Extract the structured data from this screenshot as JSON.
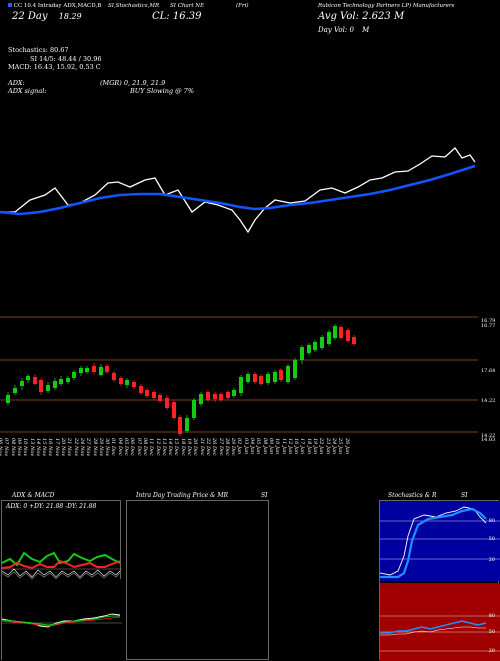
{
  "header": {
    "left_line": "CC 10.4 Intraday ADX,MACD,B",
    "line2": "SI,Stochastics,MR",
    "line3": "SI Chart NE",
    "line4": "(Fri)",
    "company": "Rubicon Technology Partners LP) Manufacturers",
    "day": "22 Day",
    "day_val": "18.29",
    "close_label": "CL:",
    "close_val": "16.39",
    "avg_vol_label": "Avg Vol:",
    "avg_vol_val": "2.623",
    "avg_vol_unit": "M",
    "day_vol_label": "Day Vol:",
    "day_vol_val": "0",
    "day_vol_unit": "M"
  },
  "indicators": {
    "stoch": "Stochastics: 80.67",
    "si": "SI 14/5: 48.44 / 30.96",
    "macd": "MACD: 16.43, 15.92, 0.53 C",
    "adx": "ADX:",
    "adx_val": "(MGR) 0, 21.9, 21.9",
    "adx_signal": "ADX signal:",
    "buy": "BUY Slowing @ 7%"
  },
  "price_axis": [
    "16.79",
    "16.77",
    "17.64",
    "14.22",
    "14.22",
    "14.03"
  ],
  "dates": [
    "06 Nov",
    "07 Nov",
    "08 Nov",
    "09 Nov",
    "10 Nov",
    "13 Nov",
    "14 Nov",
    "15 Nov",
    "16 Nov",
    "17 Nov",
    "20 Nov",
    "21 Nov",
    "22 Nov",
    "24 Nov",
    "27 Nov",
    "28 Nov",
    "29 Nov",
    "30 Nov",
    "01 Dec",
    "04 Dec",
    "05 Dec",
    "06 Dec",
    "07 Dec",
    "08 Dec",
    "11 Dec",
    "12 Dec",
    "13 Dec",
    "14 Dec",
    "15 Dec",
    "18 Dec",
    "19 Dec",
    "20 Dec",
    "21 Dec",
    "22 Dec",
    "26 Dec",
    "27 Dec",
    "28 Dec",
    "29 Dec",
    "02 Jan",
    "03 Jan",
    "04 Jan",
    "05 Jan",
    "08 Jan",
    "09 Jan",
    "10 Jan",
    "11 Jan",
    "12 Jan",
    "16 Jan",
    "17 Jan",
    "18 Jan",
    "19 Jan",
    "22 Jan",
    "23 Jan",
    "24 Jan",
    "25 Jan",
    "26 Jan"
  ],
  "panels": {
    "adx": {
      "title": "ADX  & MACD",
      "values": "ADX: 0  +DY: 21.88  -DY: 21.88"
    },
    "intraday": {
      "title": "Intra  Day Trading Price  & MR",
      "suffix": "SI"
    },
    "stoch": {
      "title": "Stochastics & R",
      "suffix": "SI",
      "levels": [
        "80",
        "50",
        "20"
      ],
      "rsi_levels": [
        "80",
        "50",
        "20"
      ]
    }
  },
  "colors": {
    "up": "#11cc11",
    "down": "#ff2222",
    "ma": "#1155ff",
    "grid": "#a0522d"
  }
}
